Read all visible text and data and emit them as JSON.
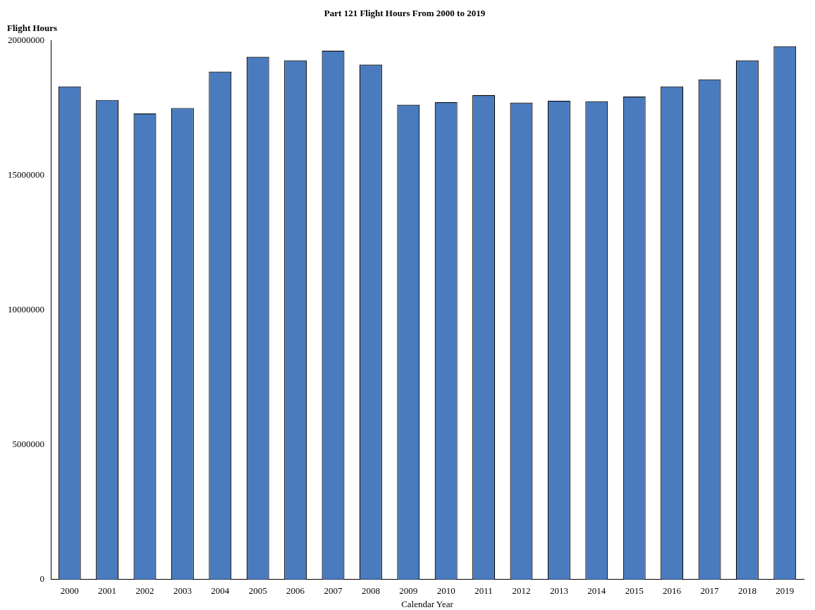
{
  "chart_data": {
    "type": "bar",
    "title": "Part 121 Flight Hours From 2000 to 2019",
    "xlabel": "Calendar Year",
    "ylabel": "Flight Hours",
    "categories": [
      "2000",
      "2001",
      "2002",
      "2003",
      "2004",
      "2005",
      "2006",
      "2007",
      "2008",
      "2009",
      "2010",
      "2011",
      "2012",
      "2013",
      "2014",
      "2015",
      "2016",
      "2017",
      "2018",
      "2019"
    ],
    "values": [
      18300000,
      17800000,
      17300000,
      17500000,
      18850000,
      19400000,
      19270000,
      19630000,
      19110000,
      17620000,
      17720000,
      17980000,
      17700000,
      17770000,
      17750000,
      17930000,
      18300000,
      18560000,
      19270000,
      19790000
    ],
    "color": "#4a7bbf",
    "ylim": [
      0,
      20000000
    ],
    "yticks": [
      0,
      5000000,
      10000000,
      15000000,
      20000000
    ],
    "grid": false,
    "legend": false
  }
}
